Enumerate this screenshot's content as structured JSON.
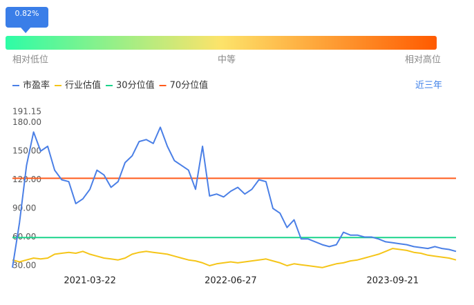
{
  "gauge": {
    "value": 0.82,
    "value_label": "0.82%",
    "low_label": "相对低位",
    "mid_label": "中等",
    "high_label": "相对高位"
  },
  "period_button": "近三年",
  "chart_data": {
    "type": "line",
    "categories": [
      null,
      null,
      null,
      null,
      null,
      null,
      null,
      null,
      null,
      null,
      null,
      "2021-03-22",
      null,
      null,
      null,
      null,
      null,
      null,
      null,
      null,
      null,
      null,
      null,
      null,
      null,
      null,
      null,
      null,
      null,
      null,
      null,
      "2022-06-27",
      null,
      null,
      null,
      null,
      null,
      null,
      null,
      null,
      null,
      null,
      null,
      null,
      null,
      null,
      null,
      null,
      null,
      null,
      null,
      null,
      null,
      null,
      "2023-09-21",
      null,
      null,
      null,
      null,
      null,
      null,
      null,
      null,
      null
    ],
    "series": [
      {
        "name": "市盈率",
        "color": "#4a7fe6",
        "values": [
          28,
          75,
          135,
          170,
          150,
          155,
          130,
          120,
          118,
          95,
          100,
          110,
          130,
          125,
          112,
          118,
          138,
          145,
          160,
          162,
          158,
          175,
          155,
          140,
          135,
          130,
          110,
          155,
          103,
          105,
          102,
          108,
          112,
          105,
          110,
          120,
          118,
          90,
          85,
          70,
          78,
          58,
          58,
          55,
          52,
          50,
          52,
          65,
          62,
          62,
          60,
          60,
          58,
          55,
          54,
          53,
          52,
          50,
          49,
          48,
          50,
          48,
          47,
          45
        ]
      },
      {
        "name": "行业估值",
        "color": "#f5c518",
        "values": [
          36,
          34,
          36,
          38,
          37,
          38,
          42,
          43,
          44,
          43,
          45,
          42,
          40,
          38,
          37,
          36,
          38,
          42,
          44,
          45,
          44,
          43,
          42,
          40,
          38,
          36,
          35,
          33,
          30,
          32,
          33,
          34,
          33,
          34,
          35,
          36,
          37,
          35,
          33,
          30,
          32,
          31,
          30,
          29,
          28,
          30,
          32,
          33,
          35,
          36,
          38,
          40,
          42,
          45,
          48,
          47,
          46,
          44,
          43,
          41,
          40,
          39,
          38,
          36
        ]
      }
    ],
    "reference_lines": [
      {
        "name": "30分位值",
        "color": "#19d48a",
        "value": 59.5
      },
      {
        "name": "70分位值",
        "color": "#ff5a1a",
        "value": 121.5
      }
    ],
    "ylim": [
      22.8,
      191.15
    ],
    "yticks": [
      {
        "value": 30,
        "label": "30.00"
      },
      {
        "value": 60,
        "label": "60.00"
      },
      {
        "value": 90,
        "label": "90.00"
      },
      {
        "value": 120,
        "label": "120.00"
      },
      {
        "value": 150,
        "label": "150.00"
      },
      {
        "value": 180,
        "label": "180.00"
      },
      191.15
    ]
  }
}
